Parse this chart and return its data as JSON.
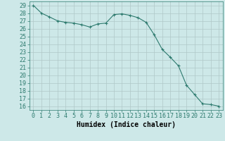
{
  "x": [
    0,
    1,
    2,
    3,
    4,
    5,
    6,
    7,
    8,
    9,
    10,
    11,
    12,
    13,
    14,
    15,
    16,
    17,
    18,
    19,
    20,
    21,
    22,
    23
  ],
  "y": [
    29,
    28,
    27.5,
    27,
    26.8,
    26.7,
    26.5,
    26.2,
    26.6,
    26.7,
    27.8,
    27.9,
    27.7,
    27.4,
    26.8,
    25.2,
    23.3,
    22.3,
    21.2,
    18.7,
    17.5,
    16.3,
    16.2,
    16
  ],
  "line_color": "#2d7a6e",
  "marker": "+",
  "marker_size": 3,
  "bg_color": "#cde8e8",
  "grid_color": "#b0c8c8",
  "xlabel": "Humidex (Indice chaleur)",
  "ylabel_ticks": [
    16,
    17,
    18,
    19,
    20,
    21,
    22,
    23,
    24,
    25,
    26,
    27,
    28,
    29
  ],
  "xlim": [
    -0.5,
    23.5
  ],
  "ylim": [
    15.5,
    29.5
  ],
  "tick_fontsize": 6,
  "xlabel_fontsize": 7
}
